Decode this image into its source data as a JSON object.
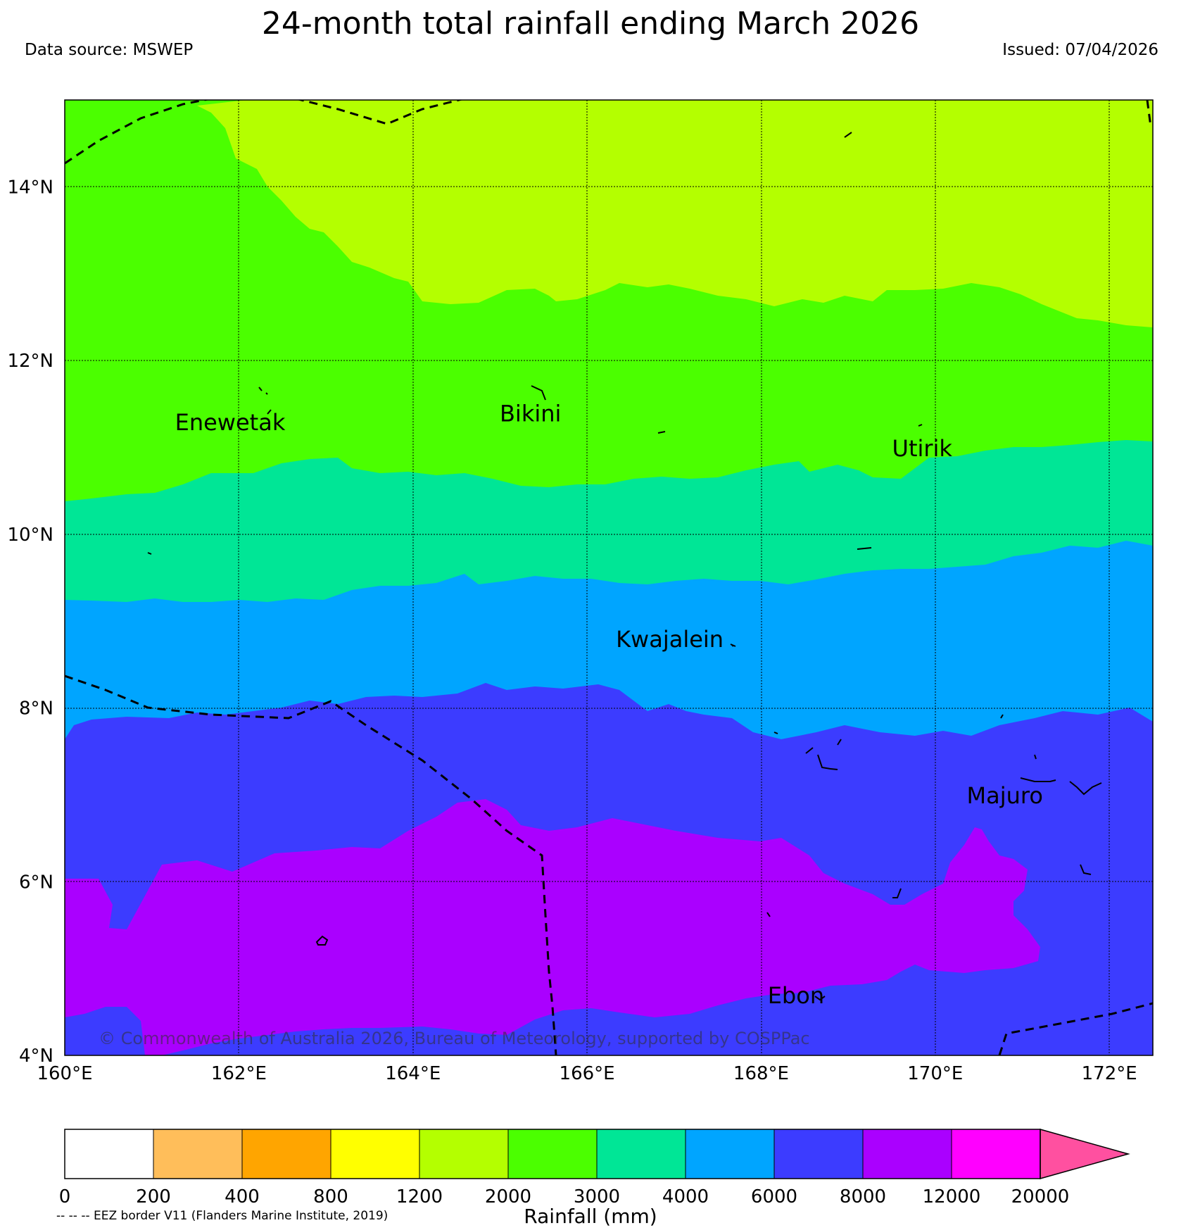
{
  "title": "24-month total rainfall ending March 2026",
  "data_source": "Data source: MSWEP",
  "issued": "Issued: 07/04/2026",
  "copyright": "© Commonwealth of Australia 2026, Bureau of Meteorology, supported by COSPPac",
  "eez_note": "-- -- -- EEZ border V11 (Flanders Marine Institute, 2019)",
  "map": {
    "lon_range": [
      160,
      172.5
    ],
    "lat_range": [
      4,
      15
    ],
    "lon_ticks": [
      {
        "value": 160,
        "label": "160°E"
      },
      {
        "value": 162,
        "label": "162°E"
      },
      {
        "value": 164,
        "label": "164°E"
      },
      {
        "value": 166,
        "label": "166°E"
      },
      {
        "value": 168,
        "label": "168°E"
      },
      {
        "value": 170,
        "label": "170°E"
      },
      {
        "value": 172,
        "label": "172°E"
      }
    ],
    "lat_ticks": [
      {
        "value": 4,
        "label": "4°N"
      },
      {
        "value": 6,
        "label": "6°N"
      },
      {
        "value": 8,
        "label": "8°N"
      },
      {
        "value": 10,
        "label": "10°N"
      },
      {
        "value": 12,
        "label": "12°N"
      },
      {
        "value": 14,
        "label": "14°N"
      }
    ],
    "places": [
      {
        "name": "Enewetak",
        "lon": 161.9,
        "lat": 11.2
      },
      {
        "name": "Bikini",
        "lon": 165.35,
        "lat": 11.3
      },
      {
        "name": "Utirik",
        "lon": 169.85,
        "lat": 10.9
      },
      {
        "name": "Kwajalein",
        "lon": 166.95,
        "lat": 8.7
      },
      {
        "name": "Majuro",
        "lon": 170.8,
        "lat": 6.9
      },
      {
        "name": "Ebon",
        "lon": 168.4,
        "lat": 4.6
      }
    ]
  },
  "colorbar": {
    "label": "Rainfall (mm)",
    "ticks": [
      "0",
      "200",
      "400",
      "800",
      "1200",
      "2000",
      "3000",
      "4000",
      "6000",
      "8000",
      "12000",
      "20000"
    ],
    "colors": [
      "#ffffff",
      "#ffbe5a",
      "#ffa500",
      "#ffff00",
      "#b4ff00",
      "#4bff00",
      "#00e696",
      "#00a5ff",
      "#3c3cff",
      "#aa00ff",
      "#ff00ff"
    ],
    "extend_color": "#ff50a0"
  }
}
